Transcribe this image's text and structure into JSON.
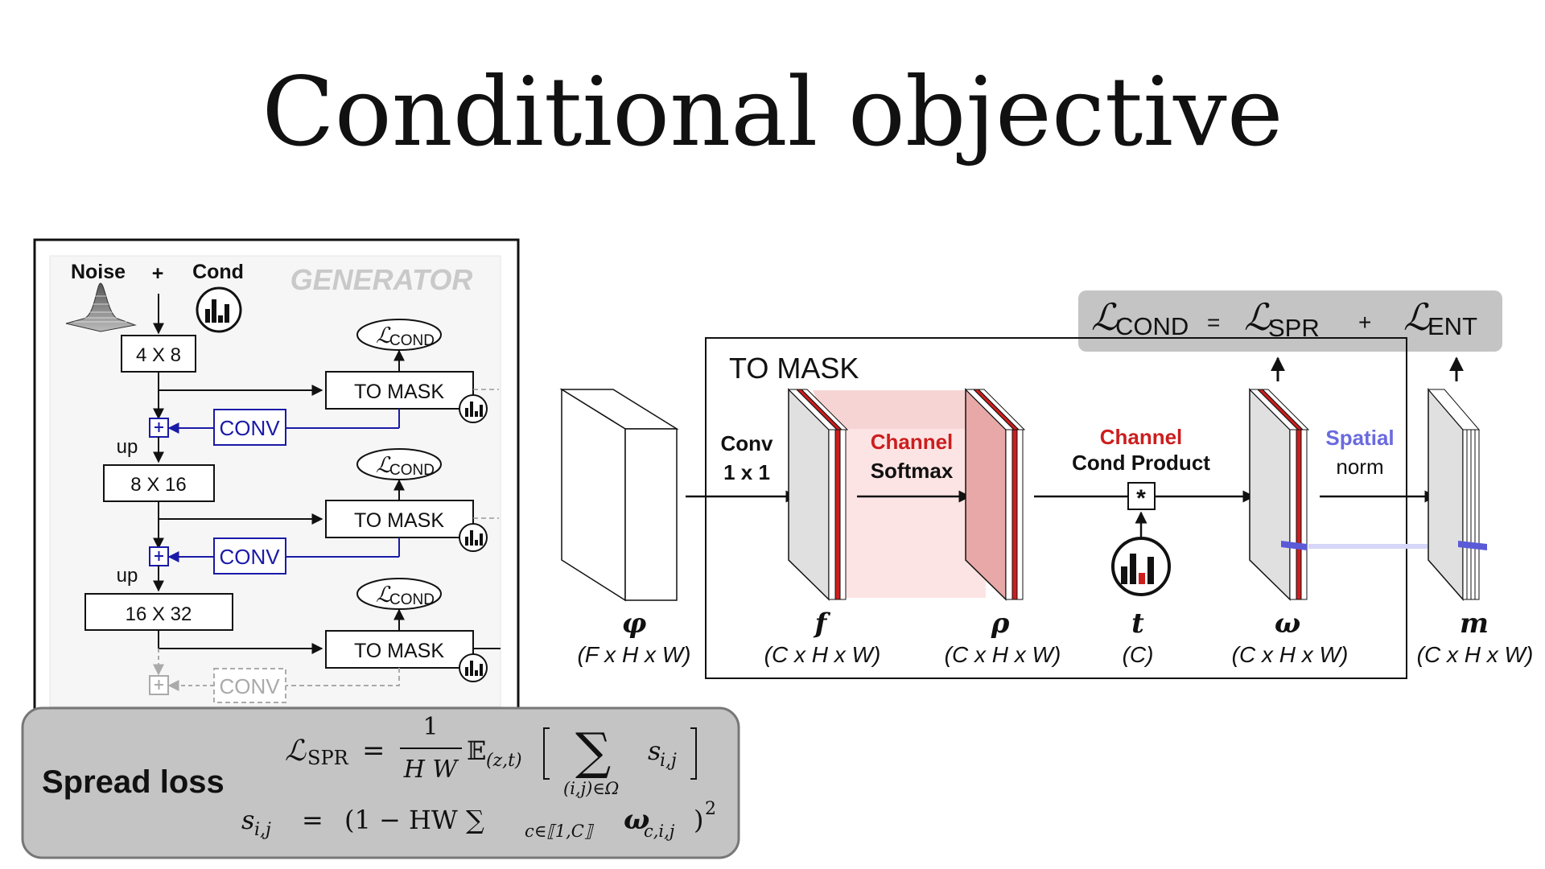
{
  "slide_title": "Conditional objective",
  "generator": {
    "watermark": "GENERATOR",
    "noise_label": "Noise",
    "plus_label": "+",
    "cond_label": "Cond",
    "up_label": "up",
    "conv_label": "CONV",
    "to_mask_label": "TO MASK",
    "loss_cond_script": "ℒ",
    "loss_cond_sub": "COND",
    "stages": [
      "4 X 8",
      "8 X 16",
      "16 X 32"
    ],
    "plus_sign": "+"
  },
  "loss_formula": {
    "lhs_script": "ℒ",
    "lhs_sub": "COND",
    "equals": "=",
    "term1_script": "ℒ",
    "term1_sub": "SPR",
    "plus": "+",
    "term2_script": "ℒ",
    "term2_sub": "ENT"
  },
  "pipeline": {
    "to_mask_title": "TO MASK",
    "conv_line1": "Conv",
    "conv_line2": "1 x 1",
    "channel_softmax_line1": "Channel",
    "channel_softmax_line2": "Softmax",
    "cond_product_line1": "Channel",
    "cond_product_line2": "Cond Product",
    "product_symbol": "*",
    "spatial_norm_line1": "Spatial",
    "spatial_norm_line2": "norm",
    "tensors": [
      {
        "symbol": "φ",
        "shape": "(F x H x W)"
      },
      {
        "symbol": "f",
        "shape": "(C x H x W)"
      },
      {
        "symbol": "ρ",
        "shape": "(C x H x W)"
      },
      {
        "symbol": "t",
        "shape": "(C)"
      },
      {
        "symbol": "ω",
        "shape": "(C x H x W)"
      },
      {
        "symbol": "m",
        "shape": "(C x H x W)"
      }
    ]
  },
  "spread_loss": {
    "label": "Spread loss",
    "line1": {
      "lhs": "ℒ",
      "lhs_sub": "SPR",
      "eq": "=",
      "frac_num": "1",
      "frac_den": "H W",
      "expect": "𝔼",
      "expect_sub": "(z,t)",
      "sum": "∑",
      "sum_sub": "(i,j)∈Ω",
      "summand": "s",
      "summand_sub": "i,j"
    },
    "line2": {
      "lhs": "s",
      "lhs_sub": "i,j",
      "eq": "=",
      "body": "(1 − HW ∑",
      "sum_sub": "c∈⟦1,C⟧",
      "omega": "ω",
      "omega_sub": "c,i,j",
      "close": ")",
      "power": "2"
    }
  },
  "colors": {
    "red_accent": "#cc1e1e",
    "blue_accent": "#6a6adf",
    "conv_blue": "#1a1aa8",
    "gray_box": "#c4c4c4",
    "softmax_pink": "#f6c9c9"
  }
}
